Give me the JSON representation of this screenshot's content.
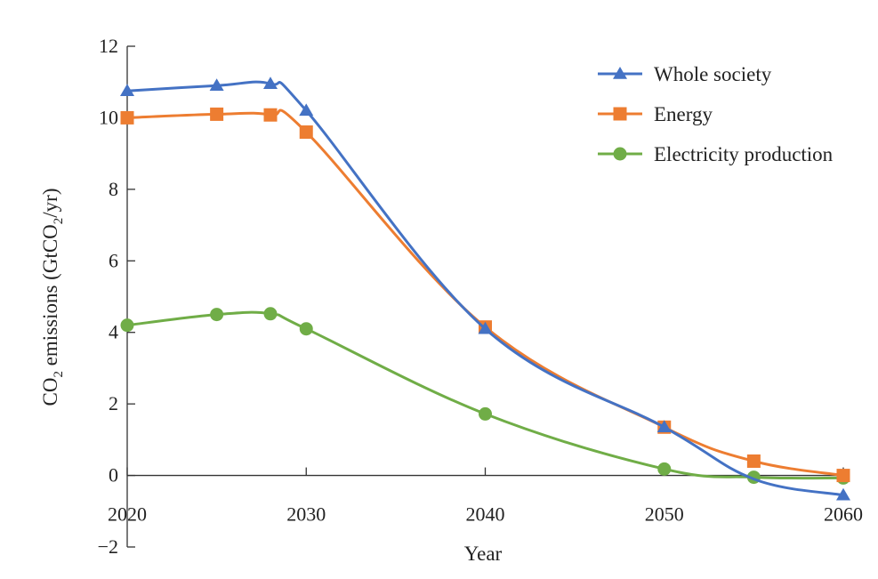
{
  "chart_data": {
    "type": "line",
    "title": "",
    "xlabel": "Year",
    "ylabel_parts": {
      "pre": "CO",
      "sub": "2",
      "mid": " emissions (GtCO",
      "sub2": "2",
      "post": "/yr)"
    },
    "xlim": [
      2020,
      2060
    ],
    "ylim": [
      -2,
      12
    ],
    "xticks": [
      2020,
      2030,
      2040,
      2050,
      2060
    ],
    "xtick_labels": [
      "2020",
      "2030",
      "2040",
      "2050",
      "2060"
    ],
    "yticks": [
      -2,
      0,
      2,
      4,
      6,
      8,
      10,
      12
    ],
    "ytick_labels": [
      "−2",
      "0",
      "2",
      "4",
      "6",
      "8",
      "10",
      "12"
    ],
    "grid": false,
    "legend_position": "top-right",
    "series": [
      {
        "name": "Whole society",
        "color": "#4472c4",
        "marker": "triangle",
        "x": [
          2020,
          2025,
          2028,
          2030,
          2040,
          2050,
          2055,
          2060
        ],
        "values": [
          10.75,
          10.9,
          10.95,
          10.2,
          4.1,
          1.35,
          -0.1,
          -0.55
        ]
      },
      {
        "name": "Energy",
        "color": "#ed7d31",
        "marker": "square",
        "x": [
          2020,
          2025,
          2028,
          2030,
          2040,
          2050,
          2055,
          2060
        ],
        "values": [
          10.0,
          10.1,
          10.08,
          9.6,
          4.15,
          1.35,
          0.4,
          0.0
        ]
      },
      {
        "name": "Electricity production",
        "color": "#70ad47",
        "marker": "circle",
        "x": [
          2020,
          2025,
          2028,
          2030,
          2040,
          2050,
          2055,
          2060
        ],
        "values": [
          4.2,
          4.5,
          4.52,
          4.1,
          1.72,
          0.18,
          -0.05,
          -0.07
        ]
      }
    ]
  }
}
